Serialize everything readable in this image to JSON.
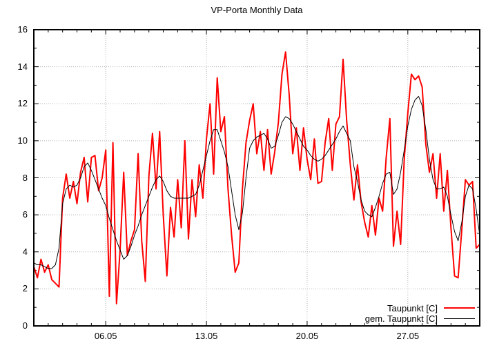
{
  "page": {
    "background": "#ffffff"
  },
  "chart_data": {
    "type": "line",
    "title": "VP-Porta Monthly Data",
    "xlabel": "",
    "ylabel": "",
    "x_axis": {
      "unit": "date (DD.MM), May",
      "range_days": [
        1,
        32
      ],
      "tick_days": [
        6,
        13,
        20,
        27
      ],
      "tick_labels": [
        "06.05",
        "13.05",
        "20.05",
        "27.05"
      ],
      "minor_tick_interval_days": 1
    },
    "y_axis": {
      "range": [
        0,
        16
      ],
      "tick_values": [
        0,
        2,
        4,
        6,
        8,
        10,
        12,
        14,
        16
      ],
      "grid_values": [
        2,
        4,
        6,
        8,
        10,
        12,
        14
      ],
      "minor_tick_interval": 1
    },
    "grid": {
      "on": true,
      "style": "dotted",
      "color": "#b0b0b0"
    },
    "border_color": "#000000",
    "legend": {
      "position": "bottom-right-inside",
      "entries": [
        {
          "label": "Taupunkt [C]",
          "color": "#ff0000"
        },
        {
          "label": "gem. Taupunkt [C]",
          "color": "#000000"
        }
      ]
    },
    "x_days": [
      1,
      1.25,
      1.5,
      1.75,
      2,
      2.25,
      2.5,
      2.75,
      3,
      3.25,
      3.5,
      3.75,
      4,
      4.25,
      4.5,
      4.75,
      5,
      5.25,
      5.5,
      5.75,
      6,
      6.25,
      6.5,
      6.75,
      7,
      7.25,
      7.5,
      7.75,
      8,
      8.25,
      8.5,
      8.75,
      9,
      9.25,
      9.5,
      9.75,
      10,
      10.25,
      10.5,
      10.75,
      11,
      11.25,
      11.5,
      11.75,
      12,
      12.25,
      12.5,
      12.75,
      13,
      13.25,
      13.5,
      13.75,
      14,
      14.25,
      14.5,
      14.75,
      15,
      15.25,
      15.5,
      15.75,
      16,
      16.25,
      16.5,
      16.75,
      17,
      17.25,
      17.5,
      17.75,
      18,
      18.25,
      18.5,
      18.75,
      19,
      19.25,
      19.5,
      19.75,
      20,
      20.25,
      20.5,
      20.75,
      21,
      21.25,
      21.5,
      21.75,
      22,
      22.25,
      22.5,
      22.75,
      23,
      23.25,
      23.5,
      23.75,
      24,
      24.25,
      24.5,
      24.75,
      25,
      25.25,
      25.5,
      25.75,
      26,
      26.25,
      26.5,
      26.75,
      27,
      27.25,
      27.5,
      27.75,
      28,
      28.25,
      28.5,
      28.75,
      29,
      29.25,
      29.5,
      29.75,
      30,
      30.25,
      30.5,
      30.75,
      31,
      31.25,
      31.5,
      31.75,
      32
    ],
    "series": [
      {
        "name": "Taupunkt [C]",
        "color": "#ff0000",
        "stroke_width": 2,
        "values": [
          3.2,
          2.6,
          3.6,
          2.9,
          3.3,
          2.5,
          2.3,
          2.1,
          6.9,
          8.2,
          6.9,
          7.8,
          6.6,
          8.3,
          9.1,
          6.7,
          9.1,
          9.2,
          7.3,
          8.0,
          9.5,
          1.6,
          9.9,
          1.2,
          4.1,
          8.3,
          3.8,
          4.6,
          5.2,
          9.3,
          4.6,
          2.4,
          8.1,
          10.4,
          7.4,
          10.5,
          6.0,
          2.7,
          6.4,
          4.8,
          7.9,
          5.3,
          10.0,
          4.7,
          7.9,
          5.9,
          8.7,
          6.9,
          10.1,
          12.0,
          8.2,
          13.4,
          10.5,
          11.3,
          7.4,
          4.9,
          2.9,
          3.4,
          7.4,
          9.9,
          11.1,
          12.0,
          9.3,
          10.5,
          8.4,
          10.6,
          8.2,
          9.4,
          11.0,
          13.6,
          14.8,
          12.5,
          9.3,
          10.7,
          8.4,
          10.7,
          9.0,
          7.9,
          10.1,
          7.7,
          7.8,
          9.9,
          11.2,
          8.4,
          10.9,
          11.3,
          14.4,
          11.1,
          8.7,
          6.8,
          8.7,
          6.7,
          5.6,
          4.8,
          6.5,
          4.9,
          6.9,
          6.2,
          9.1,
          11.2,
          4.3,
          6.2,
          4.4,
          9.0,
          11.5,
          13.6,
          13.3,
          13.5,
          12.9,
          9.8,
          8.3,
          9.3,
          6.9,
          9.3,
          6.2,
          8.4,
          5.3,
          2.7,
          2.6,
          5.2,
          7.9,
          7.6,
          7.8,
          4.2,
          4.4
        ]
      },
      {
        "name": "gem. Taupunkt [C]",
        "color": "#000000",
        "stroke_width": 1,
        "values": [
          3.4,
          3.3,
          3.3,
          3.2,
          3.1,
          3.1,
          3.3,
          4.2,
          6.6,
          7.4,
          7.6,
          7.5,
          7.6,
          8.0,
          8.6,
          8.8,
          8.4,
          7.9,
          7.4,
          6.9,
          6.5,
          5.8,
          5.2,
          4.6,
          4.1,
          3.6,
          3.8,
          4.3,
          4.9,
          5.4,
          6.0,
          6.5,
          7.0,
          7.5,
          7.9,
          8.1,
          7.8,
          7.3,
          7.0,
          6.9,
          6.9,
          6.9,
          6.9,
          6.9,
          7.0,
          7.1,
          7.6,
          8.4,
          9.2,
          10.0,
          10.6,
          10.6,
          10.0,
          9.4,
          8.6,
          7.3,
          6.0,
          5.2,
          6.1,
          8.0,
          9.6,
          10.0,
          10.2,
          10.3,
          10.4,
          10.1,
          9.6,
          9.7,
          10.3,
          11.0,
          11.3,
          11.2,
          10.9,
          10.5,
          10.1,
          9.7,
          9.5,
          9.2,
          9.0,
          8.9,
          9.0,
          9.2,
          9.5,
          9.8,
          10.1,
          10.5,
          10.8,
          10.4,
          10.0,
          8.6,
          7.8,
          6.8,
          6.2,
          6.0,
          5.9,
          6.4,
          7.0,
          7.7,
          8.2,
          8.3,
          7.1,
          7.4,
          8.3,
          9.5,
          10.8,
          11.7,
          12.2,
          12.4,
          11.9,
          10.6,
          9.0,
          7.9,
          7.4,
          7.4,
          7.5,
          7.0,
          6.0,
          5.1,
          4.6,
          5.6,
          7.0,
          7.6,
          7.4,
          6.3,
          4.9
        ]
      }
    ]
  }
}
